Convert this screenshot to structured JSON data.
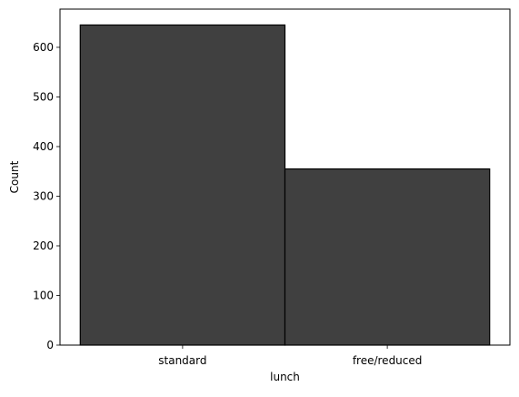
{
  "chart_data": {
    "type": "bar",
    "title": "",
    "xlabel": "lunch",
    "ylabel": "Count",
    "categories": [
      "standard",
      "free/reduced"
    ],
    "values": [
      645,
      355
    ],
    "ylim": [
      0,
      677
    ],
    "yticks": [
      0,
      100,
      200,
      300,
      400,
      500,
      600
    ],
    "grid": false,
    "bar_color": "#404040",
    "edge_color": "#000000"
  }
}
